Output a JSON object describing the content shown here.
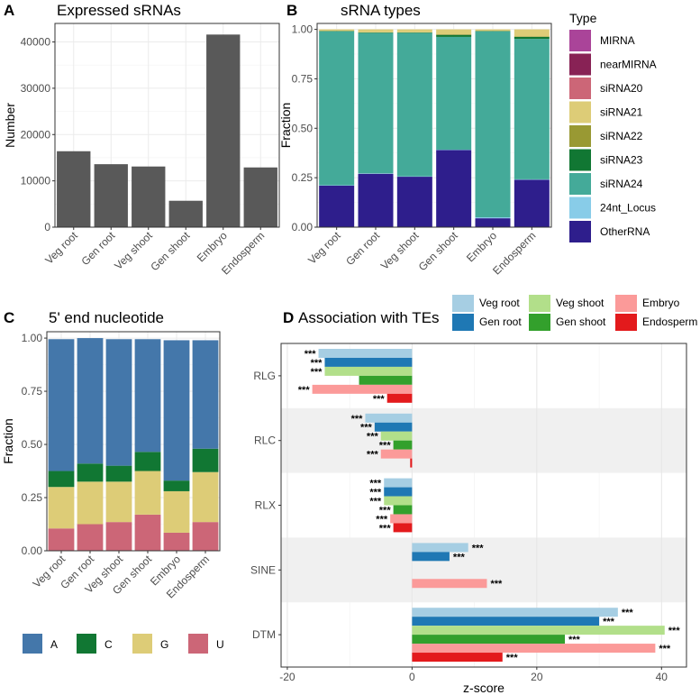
{
  "panels": {
    "A": {
      "letter": "A",
      "title": "Expressed sRNAs"
    },
    "B": {
      "letter": "B",
      "title": "sRNA types"
    },
    "C": {
      "letter": "C",
      "title": "5' end nucleotide"
    },
    "D": {
      "letter": "D",
      "title": "Association with TEs"
    }
  },
  "chart_data": [
    {
      "id": "A",
      "type": "bar",
      "title": "Expressed sRNAs",
      "xlabel": "",
      "ylabel": "Number",
      "categories": [
        "Veg root",
        "Gen root",
        "Veg shoot",
        "Gen shoot",
        "Embryo",
        "Endosperm"
      ],
      "values": [
        16400,
        13600,
        13100,
        5700,
        41600,
        12900
      ],
      "ylim": [
        0,
        44000
      ],
      "yticks": [
        0,
        10000,
        20000,
        30000,
        40000
      ],
      "ytick_labels": [
        "0",
        "10000",
        "20000",
        "30000",
        "40000"
      ],
      "bar_color": "#595959",
      "grid": true
    },
    {
      "id": "B",
      "type": "bar",
      "stacked": true,
      "title": "sRNA types",
      "xlabel": "",
      "ylabel": "Fraction",
      "categories": [
        "Veg root",
        "Gen root",
        "Veg shoot",
        "Gen shoot",
        "Embryo",
        "Endosperm"
      ],
      "ylim": [
        0,
        1.03
      ],
      "yticks": [
        0,
        0.25,
        0.5,
        0.75,
        1.0
      ],
      "ytick_labels": [
        "0.00",
        "0.25",
        "0.50",
        "0.75",
        "1.00"
      ],
      "legend_title": "Type",
      "legend_position": "right",
      "series": [
        {
          "name": "OtherRNA",
          "color": "#2e1e8c",
          "values": [
            0.21,
            0.27,
            0.255,
            0.39,
            0.045,
            0.24
          ]
        },
        {
          "name": "24nt_Locus",
          "color": "#88cce8",
          "values": [
            0.002,
            0.002,
            0.002,
            0.002,
            0.005,
            0.002
          ]
        },
        {
          "name": "siRNA24",
          "color": "#44aa99",
          "values": [
            0.778,
            0.71,
            0.725,
            0.57,
            0.94,
            0.71
          ]
        },
        {
          "name": "siRNA23",
          "color": "#117733",
          "values": [
            0.002,
            0.002,
            0.002,
            0.01,
            0.002,
            0.01
          ]
        },
        {
          "name": "siRNA22",
          "color": "#999933",
          "values": [
            0.001,
            0.001,
            0.001,
            0.003,
            0.001,
            0.003
          ]
        },
        {
          "name": "siRNA21",
          "color": "#ddcc77",
          "values": [
            0.007,
            0.015,
            0.015,
            0.025,
            0.007,
            0.035
          ]
        },
        {
          "name": "siRNA20",
          "color": "#cc6677",
          "values": [
            0.0,
            0.0,
            0.0,
            0.0,
            0.0,
            0.0
          ]
        },
        {
          "name": "nearMIRNA",
          "color": "#882255",
          "values": [
            0.0,
            0.0,
            0.0,
            0.0,
            0.0,
            0.0
          ]
        },
        {
          "name": "MIRNA",
          "color": "#aa4499",
          "values": [
            0.0,
            0.0,
            0.0,
            0.0,
            0.0,
            0.0
          ]
        }
      ],
      "legend_order": [
        "MIRNA",
        "nearMIRNA",
        "siRNA20",
        "siRNA21",
        "siRNA22",
        "siRNA23",
        "siRNA24",
        "24nt_Locus",
        "OtherRNA"
      ]
    },
    {
      "id": "C",
      "type": "bar",
      "stacked": true,
      "title": "5' end nucleotide",
      "xlabel": "",
      "ylabel": "Fraction",
      "categories": [
        "Veg root",
        "Gen root",
        "Veg shoot",
        "Gen shoot",
        "Embryo",
        "Endosperm"
      ],
      "ylim": [
        0,
        1.03
      ],
      "yticks": [
        0,
        0.25,
        0.5,
        0.75,
        1.0
      ],
      "ytick_labels": [
        "0.00",
        "0.25",
        "0.50",
        "0.75",
        "1.00"
      ],
      "legend_position": "bottom",
      "series": [
        {
          "name": "U",
          "color": "#cc6677",
          "values": [
            0.105,
            0.125,
            0.135,
            0.17,
            0.085,
            0.135
          ]
        },
        {
          "name": "G",
          "color": "#ddcc77",
          "values": [
            0.195,
            0.2,
            0.19,
            0.205,
            0.195,
            0.235
          ]
        },
        {
          "name": "C",
          "color": "#117733",
          "values": [
            0.075,
            0.085,
            0.075,
            0.09,
            0.05,
            0.11
          ]
        },
        {
          "name": "A",
          "color": "#4477aa",
          "values": [
            0.62,
            0.59,
            0.595,
            0.53,
            0.66,
            0.51
          ]
        }
      ],
      "legend_order": [
        "A",
        "C",
        "G",
        "U"
      ]
    },
    {
      "id": "D",
      "type": "bar",
      "orientation": "horizontal",
      "title": "Association with TEs",
      "xlabel": "z-score",
      "ylabel": "",
      "categories": [
        "RLG",
        "RLC",
        "RLX",
        "SINE",
        "DTM"
      ],
      "xlim": [
        -21,
        44
      ],
      "xticks": [
        -20,
        0,
        20,
        40
      ],
      "xtick_labels": [
        "-20",
        "0",
        "20",
        "40"
      ],
      "legend_position": "top",
      "series": [
        {
          "name": "Veg root",
          "color": "#a6cee3",
          "values": [
            -15,
            -7.5,
            -4.5,
            9,
            33
          ],
          "labels": [
            "***",
            "***",
            "***",
            "***",
            "***"
          ]
        },
        {
          "name": "Gen root",
          "color": "#1f78b4",
          "values": [
            -14,
            -6,
            -4.5,
            6,
            30
          ],
          "labels": [
            "***",
            "***",
            "***",
            "***",
            "***"
          ]
        },
        {
          "name": "Veg shoot",
          "color": "#b2df8a",
          "values": [
            -14,
            -5,
            -4.5,
            0,
            40.5
          ],
          "labels": [
            "***",
            "***",
            "***",
            "",
            "***"
          ]
        },
        {
          "name": "Gen shoot",
          "color": "#33a02c",
          "values": [
            -8.5,
            -3,
            -3,
            0,
            24.5
          ],
          "labels": [
            "",
            "***",
            "***",
            "",
            "***"
          ]
        },
        {
          "name": "Embryo",
          "color": "#fb9a99",
          "values": [
            -16,
            -5,
            -3.5,
            12,
            39
          ],
          "labels": [
            "***",
            "***",
            "***",
            "***",
            "***"
          ]
        },
        {
          "name": "Endosperm",
          "color": "#e31a1c",
          "values": [
            -4,
            -0.3,
            -3,
            0,
            14.5
          ],
          "labels": [
            "***",
            "",
            "***",
            "",
            "***"
          ]
        }
      ],
      "legend_order": [
        "Veg root",
        "Gen root",
        "Veg shoot",
        "Gen shoot",
        "Embryo",
        "Endosperm"
      ]
    }
  ]
}
